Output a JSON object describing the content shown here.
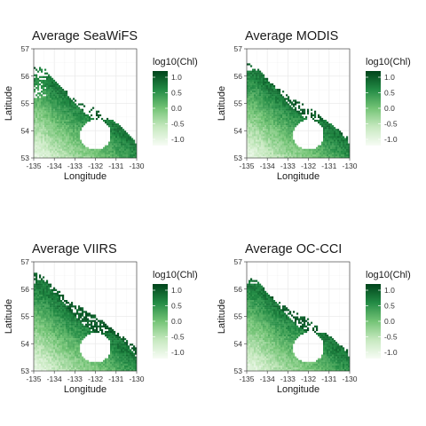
{
  "chart_data": [
    {
      "type": "heatmap",
      "title": "Average SeaWiFS",
      "xlabel": "Longitude",
      "ylabel": "Latitude",
      "xlim": [
        -135,
        -130
      ],
      "ylim": [
        53,
        57
      ],
      "x_ticks": [
        "-135",
        "-134",
        "-133",
        "-132",
        "-131",
        "-130"
      ],
      "y_ticks": [
        "53",
        "54",
        "55",
        "56",
        "57"
      ],
      "legend": {
        "title": "log10(Chl)",
        "ticks": [
          "1.0",
          "0.5",
          "0.0",
          "-0.5",
          "-1.0"
        ],
        "range": [
          -1.2,
          1.2
        ],
        "colors": [
          "#f7fcf5",
          "#c7e9c0",
          "#74c476",
          "#238b45",
          "#00441b"
        ],
        "position": "right"
      },
      "coverage": "sparse"
    },
    {
      "type": "heatmap",
      "title": "Average MODIS",
      "xlabel": "Longitude",
      "ylabel": "Latitude",
      "xlim": [
        -135,
        -130
      ],
      "ylim": [
        53,
        57
      ],
      "x_ticks": [
        "-135",
        "-134",
        "-133",
        "-132",
        "-131",
        "-130"
      ],
      "y_ticks": [
        "53",
        "54",
        "55",
        "56",
        "57"
      ],
      "legend": {
        "title": "log10(Chl)",
        "ticks": [
          "1.0",
          "0.5",
          "0.0",
          "-0.5",
          "-1.0"
        ],
        "range": [
          -1.2,
          1.2
        ],
        "colors": [
          "#f7fcf5",
          "#c7e9c0",
          "#74c476",
          "#238b45",
          "#00441b"
        ],
        "position": "right"
      },
      "coverage": "medium"
    },
    {
      "type": "heatmap",
      "title": "Average VIIRS",
      "xlabel": "Longitude",
      "ylabel": "Latitude",
      "xlim": [
        -135,
        -130
      ],
      "ylim": [
        53,
        57
      ],
      "x_ticks": [
        "-135",
        "-134",
        "-133",
        "-132",
        "-131",
        "-130"
      ],
      "y_ticks": [
        "53",
        "54",
        "55",
        "56",
        "57"
      ],
      "legend": {
        "title": "log10(Chl)",
        "ticks": [
          "1.0",
          "0.5",
          "0.0",
          "-0.5",
          "-1.0"
        ],
        "range": [
          -1.2,
          1.2
        ],
        "colors": [
          "#f7fcf5",
          "#c7e9c0",
          "#74c476",
          "#238b45",
          "#00441b"
        ],
        "position": "right"
      },
      "coverage": "full"
    },
    {
      "type": "heatmap",
      "title": "Average OC-CCI",
      "xlabel": "Longitude",
      "ylabel": "Latitude",
      "xlim": [
        -135,
        -130
      ],
      "ylim": [
        53,
        57
      ],
      "x_ticks": [
        "-135",
        "-134",
        "-133",
        "-132",
        "-131",
        "-130"
      ],
      "y_ticks": [
        "53",
        "54",
        "55",
        "56",
        "57"
      ],
      "legend": {
        "title": "log10(Chl)",
        "ticks": [
          "1.0",
          "0.5",
          "0.0",
          "-0.5",
          "-1.0"
        ],
        "range": [
          -1.2,
          1.2
        ],
        "colors": [
          "#f7fcf5",
          "#c7e9c0",
          "#74c476",
          "#238b45",
          "#00441b"
        ],
        "position": "right"
      },
      "coverage": "medium"
    }
  ]
}
